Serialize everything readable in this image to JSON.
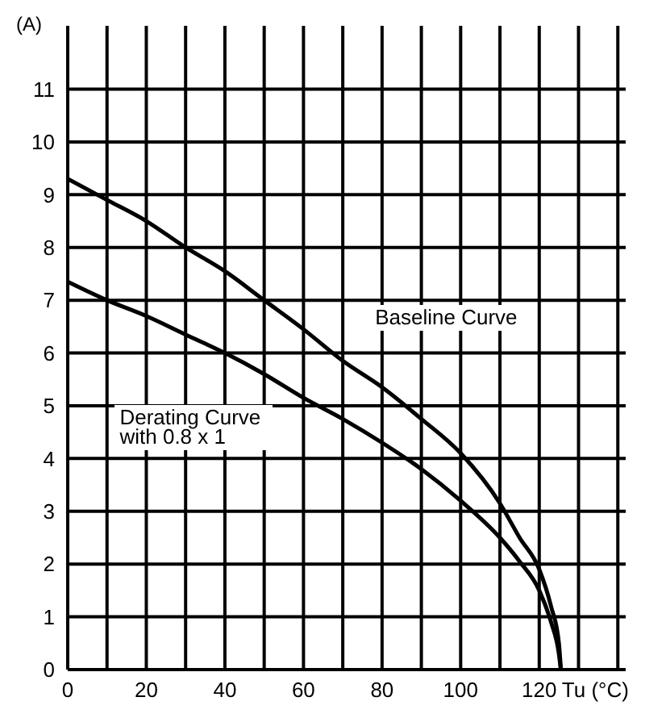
{
  "chart_data": {
    "type": "line",
    "xlabel": "Tu (°C)",
    "ylabel": "(A)",
    "xlim": [
      0,
      142
    ],
    "ylim": [
      0,
      12.2
    ],
    "xticks": [
      0,
      {
        "value": 10,
        "label": null
      },
      20,
      {
        "value": 30,
        "label": null
      },
      40,
      {
        "value": 50,
        "label": null
      },
      60,
      {
        "value": 70,
        "label": null
      },
      80,
      {
        "value": 90,
        "label": null
      },
      100,
      {
        "value": 110,
        "label": null
      },
      120,
      {
        "value": 130,
        "label": null
      },
      {
        "value": 140,
        "label": null
      }
    ],
    "yticks": [
      0,
      1,
      2,
      3,
      4,
      5,
      6,
      7,
      8,
      9,
      10,
      11
    ],
    "grid": true,
    "legend": false,
    "marker": "none",
    "line_style": "solid",
    "series": [
      {
        "name": "Baseline Curve",
        "color": "#000000",
        "x": [
          0,
          10,
          20,
          30,
          40,
          50,
          60,
          70,
          80,
          90,
          100,
          110,
          115,
          120,
          123,
          125,
          125.5
        ],
        "values": [
          9.3,
          8.9,
          8.5,
          8.0,
          7.55,
          7.0,
          6.45,
          5.85,
          5.35,
          4.75,
          4.1,
          3.15,
          2.5,
          1.9,
          1.2,
          0.5,
          0
        ]
      },
      {
        "name": "Derating Curve with 0.8 x 1",
        "color": "#000000",
        "x": [
          0,
          10,
          20,
          30,
          40,
          50,
          60,
          70,
          80,
          90,
          100,
          110,
          115,
          120,
          123,
          125,
          125.5
        ],
        "values": [
          7.35,
          7.0,
          6.7,
          6.35,
          6.0,
          5.6,
          5.15,
          4.75,
          4.3,
          3.8,
          3.2,
          2.5,
          2.05,
          1.5,
          0.9,
          0.3,
          0
        ]
      }
    ]
  }
}
